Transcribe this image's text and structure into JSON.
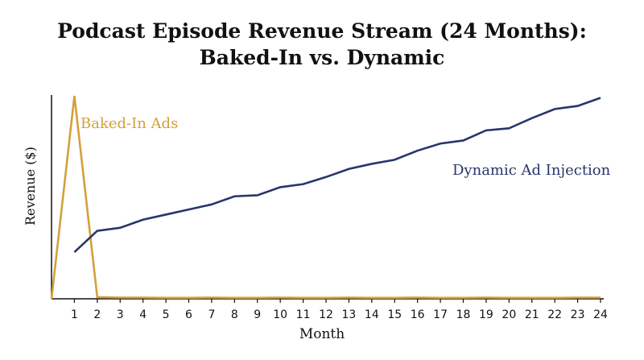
{
  "title_line1": "Podcast Episode Revenue Stream (24 Months):",
  "title_line2": "Baked-In vs. Dynamic",
  "colors": {
    "baked": "#d4a03a",
    "dynamic": "#27366b",
    "axis": "#111111"
  },
  "chart_data": {
    "type": "line",
    "title": "Podcast Episode Revenue Stream (24 Months): Baked-In vs. Dynamic",
    "xlabel": "Month",
    "ylabel": "Revenue ($)",
    "x": [
      1,
      2,
      3,
      4,
      5,
      6,
      7,
      8,
      9,
      10,
      11,
      12,
      13,
      14,
      15,
      16,
      17,
      18,
      19,
      20,
      21,
      22,
      23,
      24
    ],
    "xlim": [
      0,
      24
    ],
    "ylim": [
      0,
      100
    ],
    "grid": false,
    "legend": "none",
    "series": [
      {
        "name": "Baked-In Ads",
        "x": [
          0,
          1,
          2,
          3,
          4,
          5,
          6,
          7,
          8,
          9,
          10,
          11,
          12,
          13,
          14,
          15,
          16,
          17,
          18,
          19,
          20,
          21,
          22,
          23,
          24
        ],
        "values": [
          0,
          100,
          0.8,
          0.6,
          0.6,
          0.5,
          0.5,
          0.6,
          0.5,
          0.5,
          0.6,
          0.5,
          0.5,
          0.6,
          0.5,
          0.5,
          0.6,
          0.5,
          0.5,
          0.6,
          0.5,
          0.5,
          0.5,
          0.6,
          0.6
        ]
      },
      {
        "name": "Dynamic Ad Injection",
        "x": [
          1,
          2,
          3,
          4,
          5,
          6,
          7,
          8,
          9,
          10,
          11,
          12,
          13,
          14,
          15,
          16,
          17,
          18,
          19,
          20,
          21,
          22,
          23,
          24
        ],
        "values": [
          23,
          33.5,
          35,
          39,
          41.5,
          44,
          46.5,
          50.5,
          51,
          55,
          56.5,
          60,
          64,
          66.5,
          68.5,
          73,
          76.5,
          78,
          83,
          84,
          89,
          93.5,
          95,
          99
        ]
      }
    ]
  }
}
